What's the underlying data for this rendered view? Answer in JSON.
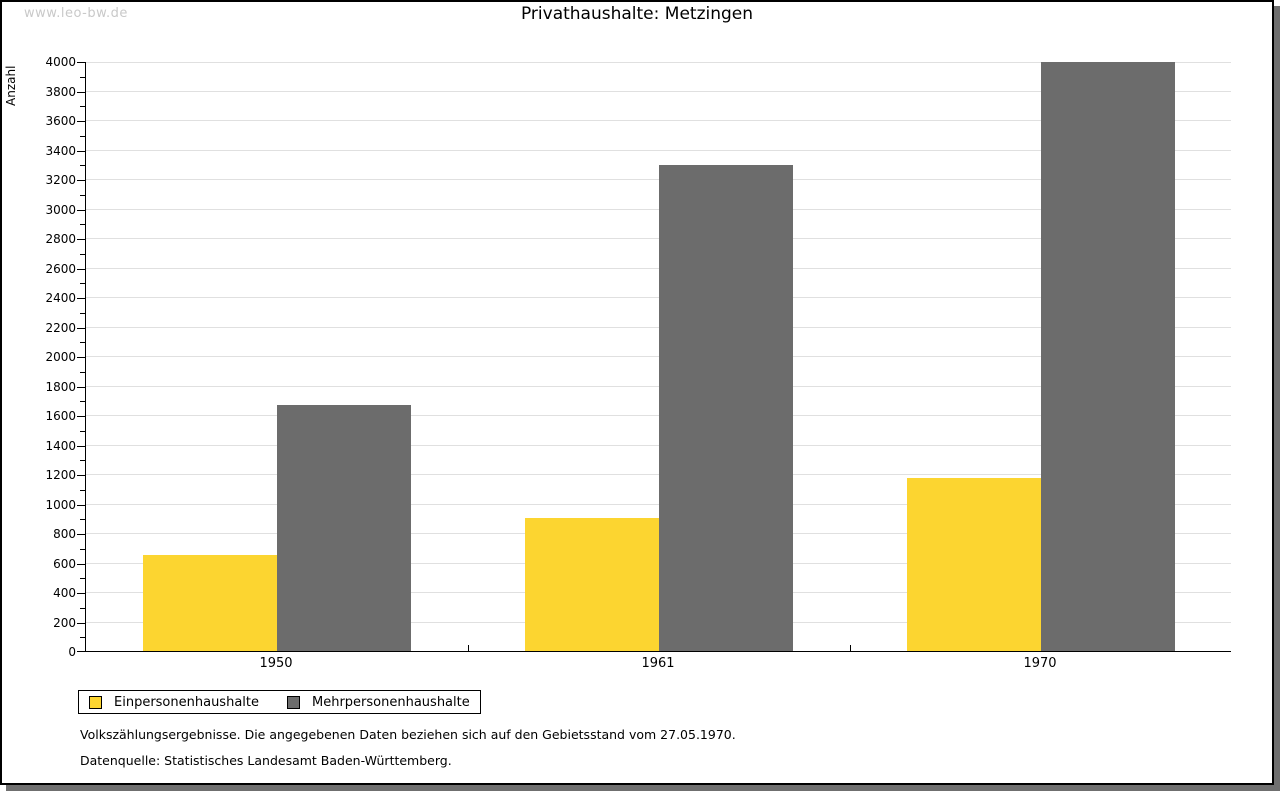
{
  "watermark": "www.leo-bw.de",
  "title": "Privathaushalte: Metzingen",
  "footnote_line1": "Volkszählungsergebnisse. Die angegebenen Daten beziehen sich auf den Gebietsstand vom 27.05.1970.",
  "footnote_line2": "Datenquelle: Statistisches Landesamt Baden-Württemberg.",
  "colors": {
    "series1": "#fcd530",
    "series2": "#6c6c6c",
    "gridline": "#e0e0e0",
    "axis": "#000000",
    "watermark": "#c9c9c9",
    "frame_shadow": "#6f6f6f"
  },
  "chart_data": {
    "type": "bar",
    "title": "Privathaushalte: Metzingen",
    "xlabel": "",
    "ylabel": "Anzahl",
    "categories": [
      "1950",
      "1961",
      "1970"
    ],
    "series": [
      {
        "name": "Einpersonenhaushalte",
        "color": "#fcd530",
        "values": [
          650,
          905,
          1175
        ]
      },
      {
        "name": "Mehrpersonenhaushalte",
        "color": "#6c6c6c",
        "values": [
          1665,
          3295,
          3990
        ]
      }
    ],
    "ylim": [
      0,
      4000
    ],
    "ytick_step": 200,
    "ytick_minor_step": 100,
    "grid": true,
    "legend_position": "bottom-left"
  }
}
